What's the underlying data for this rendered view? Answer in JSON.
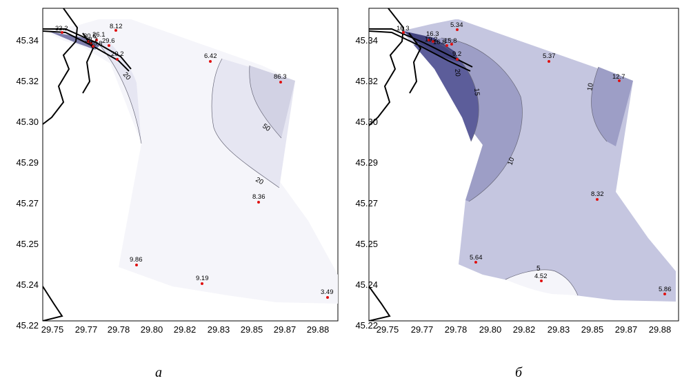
{
  "x_ticks": [
    "29.75",
    "29.77",
    "29.78",
    "29.80",
    "29.82",
    "29.83",
    "29.85",
    "29.87",
    "29.88"
  ],
  "y_ticks": [
    "45.34",
    "45.32",
    "45.30",
    "45.29",
    "45.27",
    "45.25",
    "45.24",
    "45.22"
  ],
  "colors": {
    "panel_a": [
      "#f5f5fa",
      "#e6e6f2",
      "#d2d2e4",
      "#7d7dab"
    ],
    "panel_b": [
      "#f5f5fa",
      "#c5c6e0",
      "#9d9ec6",
      "#5c5d9a",
      "#42437e"
    ],
    "point": "#e01010",
    "contour": "#666677"
  },
  "panels": [
    {
      "caption": "a",
      "values": [
        "33.2",
        "30.6",
        "26.1",
        "32.7",
        "40.8",
        "29.6",
        "8.12",
        "20.2",
        "6.42",
        "86.3",
        "8.36",
        "9.86",
        "9.19",
        "3.49"
      ],
      "contour_labels": [
        "20",
        "50",
        "20"
      ]
    },
    {
      "caption": "б",
      "values": [
        "16.3",
        "16.3",
        "19.2",
        "16.8",
        "15.8",
        "9.2",
        "5.34",
        "5.37",
        "12.7",
        "8.32",
        "5.64",
        "4.52",
        "5.86"
      ],
      "contour_labels": [
        "20",
        "15",
        "10",
        "10",
        "5"
      ]
    }
  ]
}
